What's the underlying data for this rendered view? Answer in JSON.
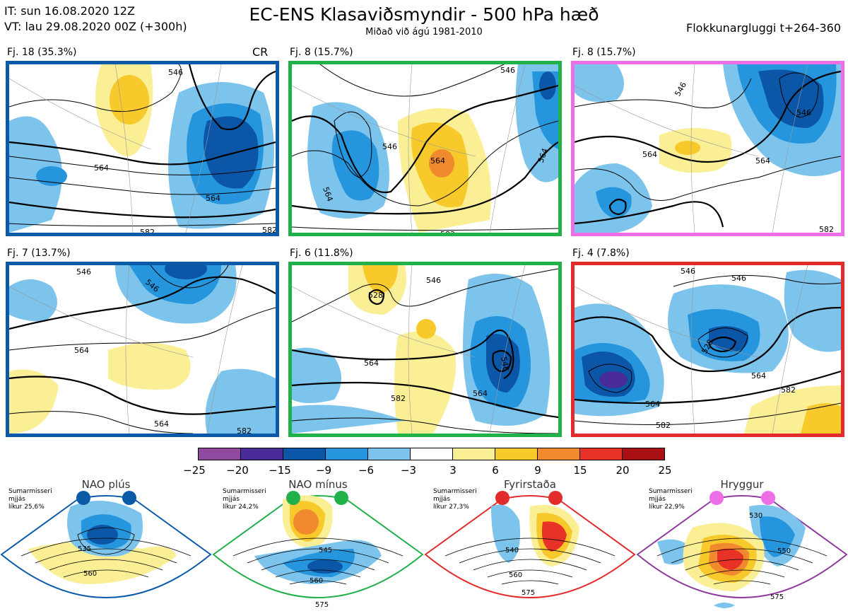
{
  "header": {
    "it_line": "IT: sun 16.08.2020 12Z",
    "vt_line": "VT: lau 29.08.2020 00Z  (+300h)",
    "title": "EC-ENS Klasaviðsmyndir - 500 hPa hæð",
    "subtitle": "Miðað við ágú 1981-2010",
    "window_label": "Flokkunargluggi t+264-360"
  },
  "panels": [
    {
      "label": "Fj. 18 (35.3%)",
      "border": "#0a5aa8",
      "tag": "CR",
      "contours": [
        "546",
        "564",
        "564",
        "582",
        "582"
      ]
    },
    {
      "label": "Fj. 8 (15.7%)",
      "border": "#22b04b",
      "contours": [
        "546",
        "546",
        "564",
        "564",
        "564",
        "582"
      ]
    },
    {
      "label": "Fj. 8 (15.7%)",
      "border": "#ee6ee8",
      "contours": [
        "546",
        "546",
        "564",
        "564",
        "582"
      ]
    },
    {
      "label": "Fj. 7 (13.7%)",
      "border": "#0a5aa8",
      "contours": [
        "546",
        "546",
        "564",
        "564",
        "582"
      ]
    },
    {
      "label": "Fj. 6 (11.8%)",
      "border": "#22b04b",
      "contours": [
        "528",
        "546",
        "546",
        "564",
        "564",
        "582"
      ]
    },
    {
      "label": "Fj. 4 (7.8%)",
      "border": "#e32b2b",
      "contours": [
        "546",
        "546",
        "528",
        "564",
        "564",
        "582",
        "582"
      ]
    }
  ],
  "colorbar": {
    "labels": [
      "−25",
      "−20",
      "−15",
      "−9",
      "−6",
      "−3",
      "3",
      "6",
      "9",
      "15",
      "20",
      "25"
    ],
    "colors": [
      "#8f4aa0",
      "#4a2c99",
      "#0c56a8",
      "#2596de",
      "#7dc4ec",
      "#ffffff",
      "#fbef95",
      "#f7c92a",
      "#f1892f",
      "#e83228",
      "#a81013"
    ]
  },
  "regimes": [
    {
      "name": "NAO plús",
      "desc": [
        "Sumarmisseri",
        "mjjás",
        "líkur 25,6%"
      ],
      "color": "#0a5aa8",
      "contours": [
        "535",
        "560"
      ]
    },
    {
      "name": "NAO mínus",
      "desc": [
        "Sumarmisseri",
        "mjjás",
        "líkur 24,2%"
      ],
      "color": "#22b04b",
      "contours": [
        "545",
        "560",
        "575"
      ]
    },
    {
      "name": "Fyrirstaða",
      "desc": [
        "Sumarmisseri",
        "mjjás",
        "líkur 27,3%"
      ],
      "color": "#e32b2b",
      "contours": [
        "540",
        "560",
        "575"
      ]
    },
    {
      "name": "Hryggur",
      "desc": [
        "Sumarmisseri",
        "mjjás",
        "líkur 22,9%"
      ],
      "color": "#ee6ee8",
      "contours": [
        "530",
        "550",
        "575"
      ]
    }
  ]
}
